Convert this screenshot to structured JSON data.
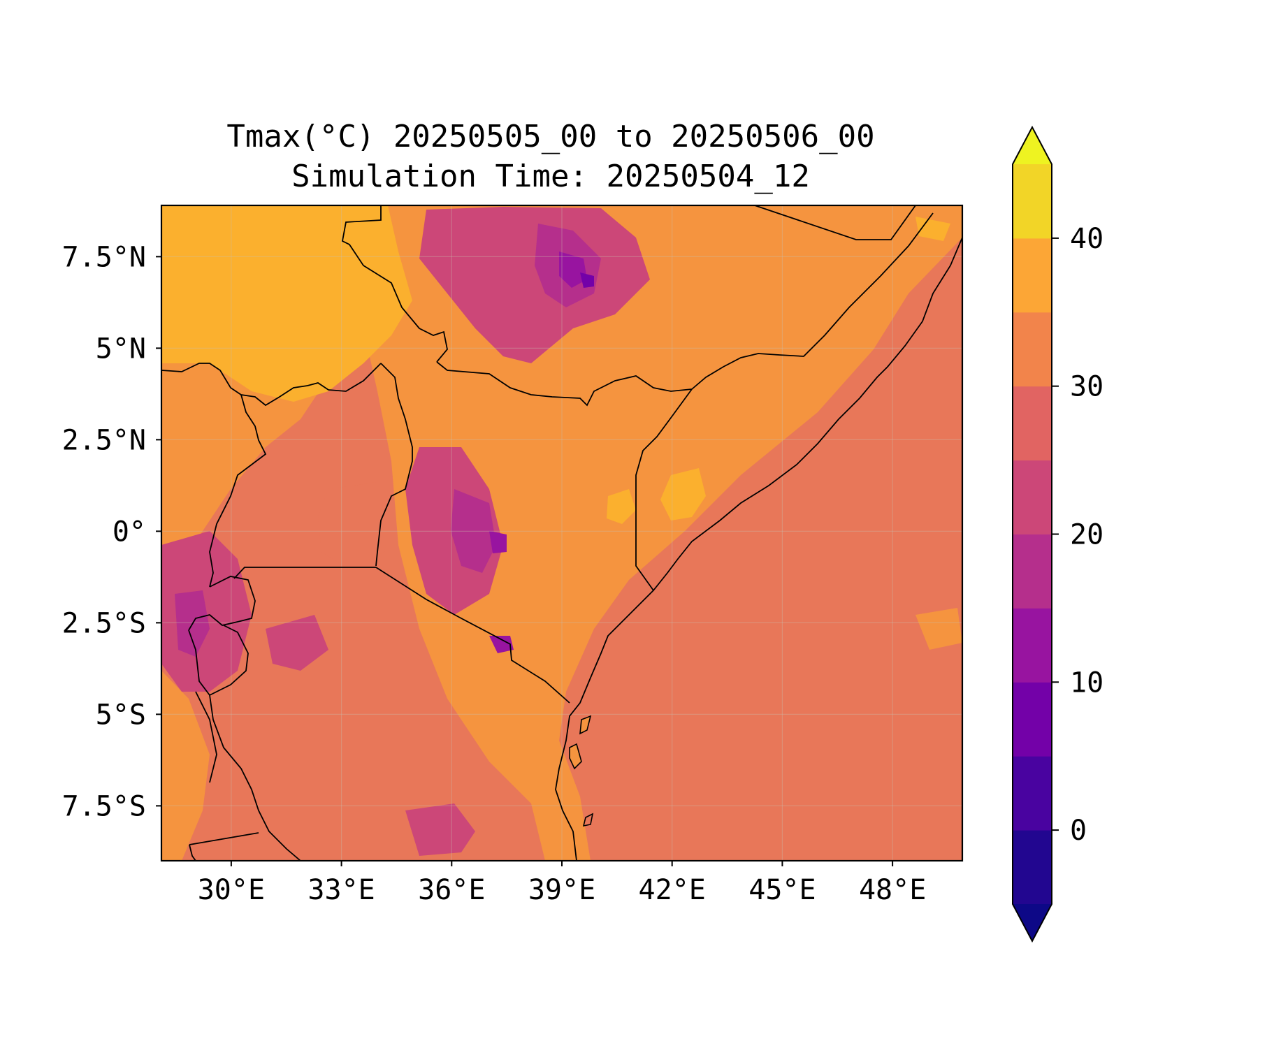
{
  "title": {
    "line1": "Tmax(°C) 20250505_00 to 20250506_00",
    "line2": "Simulation Time: 20250504_12"
  },
  "map": {
    "region": "East Africa",
    "lon_range": [
      28.1,
      49.9
    ],
    "lat_range": [
      -9.0,
      8.9
    ],
    "lon_ticks": [
      {
        "value": 30,
        "label": "30°E"
      },
      {
        "value": 33,
        "label": "33°E"
      },
      {
        "value": 36,
        "label": "36°E"
      },
      {
        "value": 39,
        "label": "39°E"
      },
      {
        "value": 42,
        "label": "42°E"
      },
      {
        "value": 45,
        "label": "45°E"
      },
      {
        "value": 48,
        "label": "48°E"
      }
    ],
    "lat_ticks": [
      {
        "value": 7.5,
        "label": "7.5°N"
      },
      {
        "value": 5,
        "label": "5°N"
      },
      {
        "value": 2.5,
        "label": "2.5°N"
      },
      {
        "value": 0,
        "label": "0°"
      },
      {
        "value": -2.5,
        "label": "2.5°S"
      },
      {
        "value": -5,
        "label": "5°S"
      },
      {
        "value": -7.5,
        "label": "7.5°S"
      }
    ],
    "gridlines": true
  },
  "colorbar": {
    "colormap": "plasma",
    "levels": [
      -5,
      0,
      5,
      10,
      15,
      20,
      25,
      30,
      35,
      40,
      45
    ],
    "colors": [
      "#220690",
      "#4903a0",
      "#7301a8",
      "#9814a0",
      "#b52f8c",
      "#cc4778",
      "#e16462",
      "#f2844b",
      "#fca636",
      "#f2d527"
    ],
    "extend_under_color": "#0d0887",
    "extend_over_color": "#eef321",
    "ticks": [
      {
        "value": 0,
        "label": "0"
      },
      {
        "value": 10,
        "label": "10"
      },
      {
        "value": 20,
        "label": "20"
      },
      {
        "value": 30,
        "label": "30"
      },
      {
        "value": 40,
        "label": "40"
      }
    ]
  }
}
